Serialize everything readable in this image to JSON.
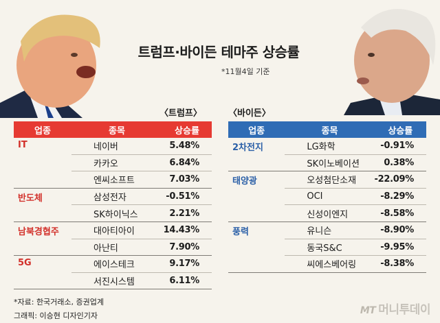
{
  "title": "트럼프·바이든 테마주 상승률",
  "date_note": "*11월4일 기준",
  "trump": {
    "label": "〈트럼프〉",
    "headers": [
      "업종",
      "종목",
      "상승률"
    ],
    "groups": [
      {
        "sector": "IT",
        "rows": [
          [
            "네이버",
            "5.48%"
          ],
          [
            "카카오",
            "6.84%"
          ],
          [
            "엔씨소프트",
            "7.03%"
          ]
        ]
      },
      {
        "sector": "반도체",
        "rows": [
          [
            "삼성전자",
            "-0.51%"
          ],
          [
            "SK하이닉스",
            "2.21%"
          ]
        ]
      },
      {
        "sector": "남북경협주",
        "rows": [
          [
            "대아티아이",
            "14.43%"
          ],
          [
            "아난티",
            "7.90%"
          ]
        ]
      },
      {
        "sector": "5G",
        "rows": [
          [
            "에이스테크",
            "9.17%"
          ],
          [
            "서진시스템",
            "6.11%"
          ]
        ]
      }
    ]
  },
  "biden": {
    "label": "〈바이든〉",
    "headers": [
      "업종",
      "종목",
      "상승률"
    ],
    "groups": [
      {
        "sector": "2차전지",
        "rows": [
          [
            "LG화학",
            "-0.91%"
          ],
          [
            "SK이노베이션",
            "0.38%"
          ]
        ]
      },
      {
        "sector": "태양광",
        "rows": [
          [
            "오성첨단소재",
            "-22.09%"
          ],
          [
            "OCI",
            "-8.29%"
          ],
          [
            "신성이엔지",
            "-8.58%"
          ]
        ]
      },
      {
        "sector": "풍력",
        "rows": [
          [
            "유니슨",
            "-8.90%"
          ],
          [
            "동국S&C",
            "-9.95%"
          ],
          [
            "씨에스베어링",
            "-8.38%"
          ]
        ]
      }
    ]
  },
  "source": "*자료: 한국거래소, 증권업계",
  "credit": "그래픽: 이승현 디자인기자",
  "watermark": {
    "mt": "MT",
    "name": "머니투데이"
  },
  "colors": {
    "trump_accent": "#e63a32",
    "biden_accent": "#2f6cb5"
  },
  "chart_data": {
    "type": "table",
    "title": "트럼프·바이든 테마주 상승률",
    "note": "*11월4일 기준",
    "tables": [
      {
        "name": "트럼프",
        "columns": [
          "업종",
          "종목",
          "상승률"
        ],
        "rows": [
          [
            "IT",
            "네이버",
            5.48
          ],
          [
            "IT",
            "카카오",
            6.84
          ],
          [
            "IT",
            "엔씨소프트",
            7.03
          ],
          [
            "반도체",
            "삼성전자",
            -0.51
          ],
          [
            "반도체",
            "SK하이닉스",
            2.21
          ],
          [
            "남북경협주",
            "대아티아이",
            14.43
          ],
          [
            "남북경협주",
            "아난티",
            7.9
          ],
          [
            "5G",
            "에이스테크",
            9.17
          ],
          [
            "5G",
            "서진시스템",
            6.11
          ]
        ]
      },
      {
        "name": "바이든",
        "columns": [
          "업종",
          "종목",
          "상승률"
        ],
        "rows": [
          [
            "2차전지",
            "LG화학",
            -0.91
          ],
          [
            "2차전지",
            "SK이노베이션",
            0.38
          ],
          [
            "태양광",
            "오성첨단소재",
            -22.09
          ],
          [
            "태양광",
            "OCI",
            -8.29
          ],
          [
            "태양광",
            "신성이엔지",
            -8.58
          ],
          [
            "풍력",
            "유니슨",
            -8.9
          ],
          [
            "풍력",
            "동국S&C",
            -9.95
          ],
          [
            "풍력",
            "씨에스베어링",
            -8.38
          ]
        ]
      }
    ]
  }
}
